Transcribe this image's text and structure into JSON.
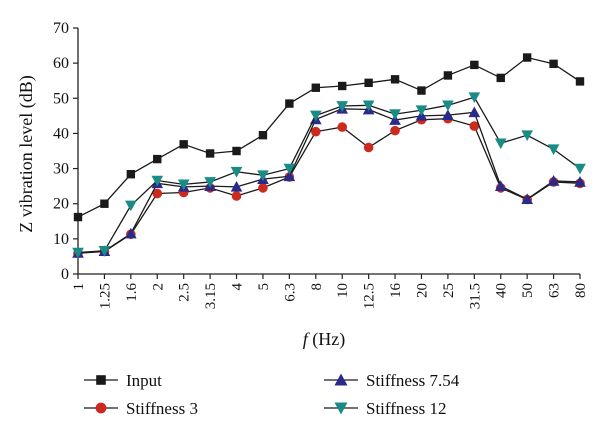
{
  "chart_data": {
    "type": "line",
    "title": "",
    "xlabel": {
      "italic": "f",
      "rest": " (Hz)"
    },
    "ylabel": "Z vibration level (dB)",
    "ylim": [
      0,
      70
    ],
    "yticks": [
      0,
      10,
      20,
      30,
      40,
      50,
      60,
      70
    ],
    "grid": false,
    "legend_position": "bottom",
    "categories": [
      "1",
      "1.25",
      "1.6",
      "2",
      "2.5",
      "3.15",
      "4",
      "5",
      "6.3",
      "8",
      "10",
      "12.5",
      "16",
      "20",
      "25",
      "31.5",
      "40",
      "50",
      "63",
      "80"
    ],
    "series": [
      {
        "name": "Input",
        "marker": "square",
        "color": "#1a1a1a",
        "values": [
          16.2,
          20.0,
          28.4,
          32.7,
          36.9,
          34.3,
          35.0,
          39.5,
          48.5,
          53.0,
          53.5,
          54.4,
          55.4,
          52.2,
          56.5,
          59.5,
          55.8,
          61.6,
          59.8,
          54.8
        ]
      },
      {
        "name": "Stiffness 3",
        "marker": "circle",
        "color": "#cc2a1e",
        "values": [
          5.9,
          6.4,
          11.3,
          22.9,
          23.2,
          24.5,
          22.2,
          24.5,
          27.6,
          40.5,
          41.8,
          36.0,
          40.8,
          43.9,
          44.2,
          42.1,
          24.5,
          21.2,
          26.2,
          25.8
        ]
      },
      {
        "name": "Stiffness 7.54",
        "marker": "triangle-up",
        "color": "#2a2a8a",
        "values": [
          6.0,
          6.5,
          11.5,
          25.8,
          24.8,
          25.0,
          24.8,
          27.0,
          27.8,
          44.0,
          47.0,
          46.8,
          43.8,
          45.0,
          45.2,
          46.0,
          25.0,
          21.3,
          26.5,
          26.2
        ]
      },
      {
        "name": "Stiffness 12",
        "marker": "triangle-down",
        "color": "#1a8c86",
        "values": [
          6.1,
          6.6,
          19.5,
          26.6,
          25.5,
          26.2,
          29.1,
          28.1,
          30.0,
          45.1,
          47.8,
          48.0,
          45.5,
          46.6,
          48.0,
          50.3,
          37.2,
          39.5,
          35.5,
          30.0
        ]
      }
    ]
  }
}
